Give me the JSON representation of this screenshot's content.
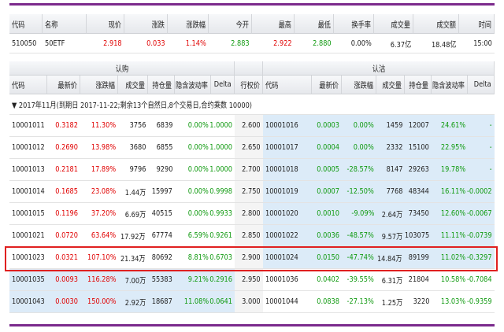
{
  "quote": {
    "headers": [
      "代码",
      "名称",
      "现价",
      "涨跌",
      "涨跌幅",
      "今开",
      "最高",
      "最低",
      "换手率",
      "成交量",
      "成交额",
      "时间"
    ],
    "values": [
      "510050",
      "50ETF",
      "2.918",
      "0.033",
      "1.14%",
      "2.883",
      "2.922",
      "2.880",
      "0.00%",
      "6.37亿",
      "18.48亿",
      "15:00"
    ]
  },
  "option_chain": {
    "call_label": "认购",
    "put_label": "认沽",
    "headers": [
      "代码",
      "最新价",
      "涨跌幅",
      "成交量",
      "持仓量",
      "隐含波动率",
      "Delta",
      "行权价",
      "代码",
      "最新价",
      "涨跌幅",
      "成交量",
      "持仓量",
      "隐含波动率",
      "Delta"
    ],
    "group": "▼ 2017年11月(到期日 2017-11-22;剩余13个自然日,8个交易日,合约乘数 10000)",
    "rows": [
      [
        "10001011",
        "0.3182",
        "11.30%",
        "3756",
        "6839",
        "0.00%",
        "1.0000",
        "2.600",
        "10001016",
        "0.0003",
        "0.00%",
        "1459",
        "12007",
        "24.61%",
        "-"
      ],
      [
        "10001012",
        "0.2690",
        "13.98%",
        "3680",
        "6855",
        "0.00%",
        "1.0000",
        "2.650",
        "10001017",
        "0.0004",
        "0.00%",
        "2332",
        "15100",
        "22.95%",
        "-"
      ],
      [
        "10001013",
        "0.2181",
        "17.89%",
        "9796",
        "9290",
        "0.00%",
        "1.0000",
        "2.700",
        "10001018",
        "0.0005",
        "-28.57%",
        "8147",
        "29263",
        "19.78%",
        "-"
      ],
      [
        "10001014",
        "0.1685",
        "23.08%",
        "1.44万",
        "15997",
        "0.00%",
        "0.9998",
        "2.750",
        "10001019",
        "0.0007",
        "-12.50%",
        "7768",
        "48344",
        "16.11%",
        "-0.0002"
      ],
      [
        "10001015",
        "0.1196",
        "37.20%",
        "6.69万",
        "40515",
        "0.00%",
        "0.9933",
        "2.800",
        "10001020",
        "0.0010",
        "-9.09%",
        "2.64万",
        "73450",
        "12.60%",
        "-0.0067"
      ],
      [
        "10001021",
        "0.0720",
        "63.64%",
        "17.92万",
        "67774",
        "6.59%",
        "0.9261",
        "2.850",
        "10001022",
        "0.0036",
        "-48.57%",
        "9.57万",
        "103075",
        "11.11%",
        "-0.0739"
      ],
      [
        "10001023",
        "0.0321",
        "107.10%",
        "21.34万",
        "80692",
        "8.81%",
        "0.6703",
        "2.900",
        "10001024",
        "0.0150",
        "-47.74%",
        "14.84万",
        "89199",
        "11.02%",
        "-0.3297"
      ],
      [
        "10001035",
        "0.0093",
        "116.28%",
        "7.00万",
        "55383",
        "9.21%",
        "0.2916",
        "2.950",
        "10001036",
        "0.0402",
        "-39.55%",
        "6.31万",
        "21804",
        "10.58%",
        "-0.7084"
      ],
      [
        "10001043",
        "0.0030",
        "150.00%",
        "2.92万",
        "18687",
        "11.08%",
        "0.0641",
        "3.000",
        "10001044",
        "0.0838",
        "-27.13%",
        "1.25万",
        "3220",
        "13.03%",
        "-0.9359"
      ]
    ]
  }
}
